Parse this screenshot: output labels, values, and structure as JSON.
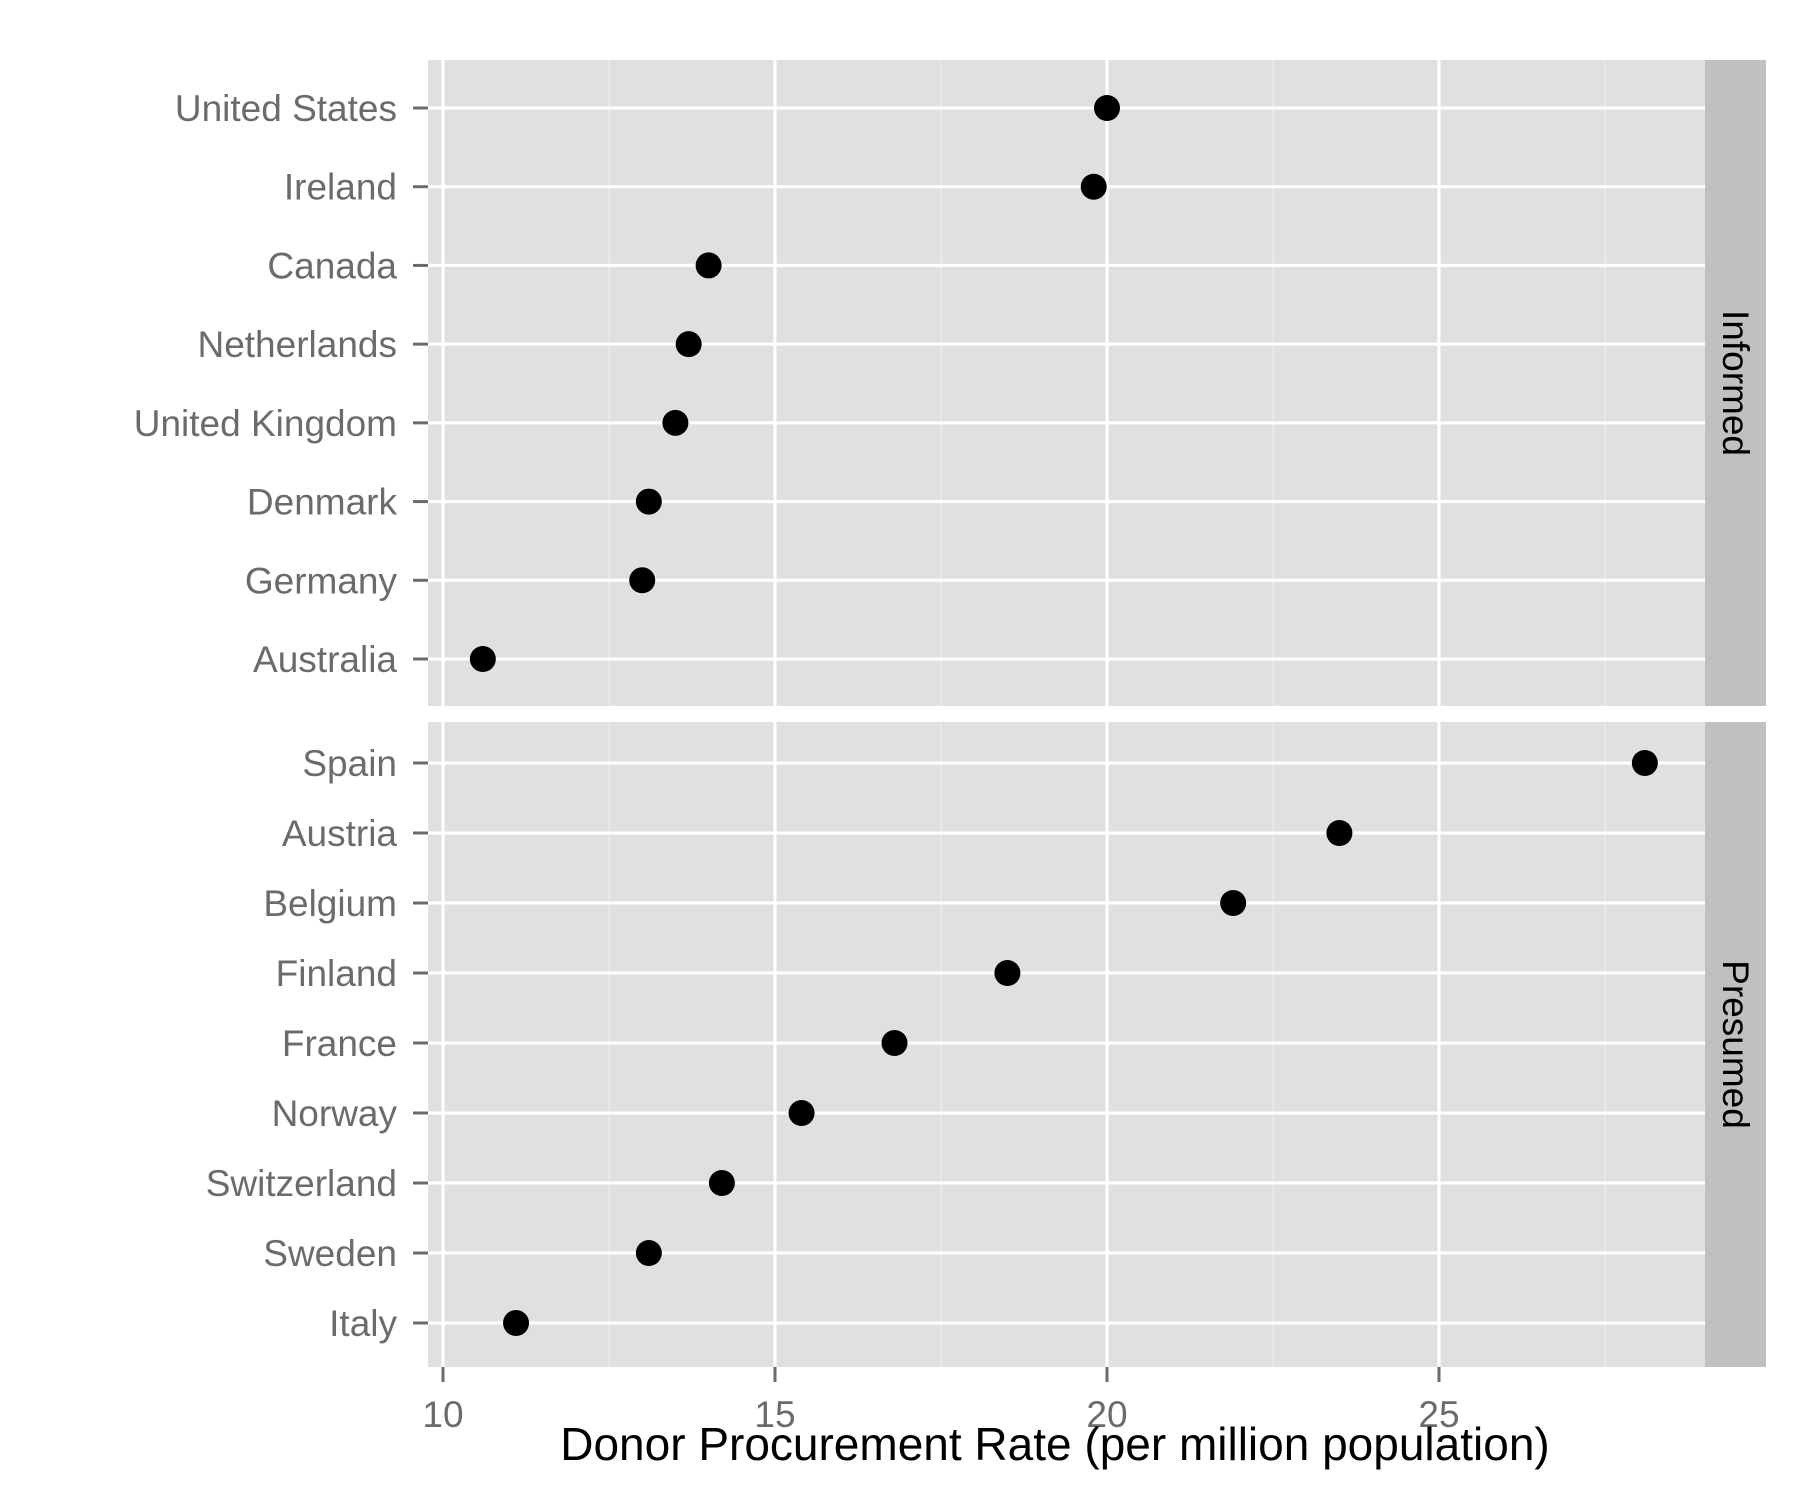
{
  "colors": {
    "panel_background": "#e0e0e0",
    "strip_background": "#c0c0c0",
    "grid_major": "#ffffff",
    "grid_minor": "#ebebeb",
    "point": "#000000",
    "tick_label": "#6b6b6b",
    "axis_title": "#000000"
  },
  "chart_data": {
    "type": "scatter",
    "title": "",
    "xlabel": "Donor Procurement Rate (per million population)",
    "ylabel": "",
    "xlim": [
      9.8,
      29
    ],
    "x_ticks": [
      10,
      15,
      20,
      25
    ],
    "x_tick_labels": [
      "10",
      "15",
      "20",
      "25"
    ],
    "grid": true,
    "legend": "none",
    "facets": [
      {
        "label": "Informed",
        "categories": [
          "United States",
          "Ireland",
          "Canada",
          "Netherlands",
          "United Kingdom",
          "Denmark",
          "Germany",
          "Australia"
        ],
        "values": [
          20.0,
          19.8,
          14.0,
          13.7,
          13.5,
          13.1,
          13.0,
          10.6
        ]
      },
      {
        "label": "Presumed",
        "categories": [
          "Spain",
          "Austria",
          "Belgium",
          "Finland",
          "France",
          "Norway",
          "Switzerland",
          "Sweden",
          "Italy"
        ],
        "values": [
          28.1,
          23.5,
          21.9,
          18.5,
          16.8,
          15.4,
          14.2,
          13.1,
          11.1
        ]
      }
    ]
  }
}
